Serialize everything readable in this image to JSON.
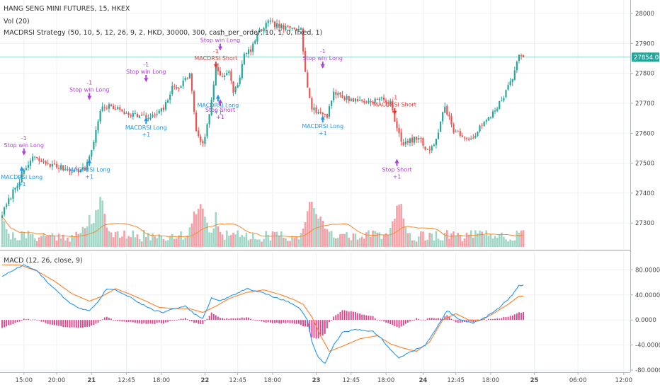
{
  "header": {
    "symbol_line": "HANG SENG MINI FUTURES, 15, HKEX",
    "volume_line": "Vol (20)",
    "strategy_line": "MACDRSI Strategy (50, 10, 5, 12, 26, 9, 2, HKD, 30000, 300, cash_per_order, 10, 1, 0, fixed, 1)"
  },
  "macd_panel": {
    "label": "MACD (12, 26, close, 9)",
    "y_ticks": [
      "80.0000",
      "40.0000",
      "0.0000",
      "-40.0000",
      "-80.0000"
    ]
  },
  "colors": {
    "up": "#26a69a",
    "down": "#ef5350",
    "vol_up": "#9fd6c6",
    "vol_down": "#f4a0a6",
    "vol_ma": "#f28b30",
    "macd_line": "#2196f3",
    "signal_line": "#ff7f27",
    "hist": "#e0408a",
    "long_signal": "#2196f3",
    "short_signal": "#e53935",
    "exit_signal": "#b03fd8",
    "last_price_bg": "#26a69a",
    "last_price_line": "#26a69a"
  },
  "chart_data": [
    {
      "type": "candlestick",
      "title": "HANG SENG MINI FUTURES, 15, HKEX",
      "y_ticks": [
        28000,
        27900,
        27800,
        27700,
        27600,
        27500,
        27400,
        27300
      ],
      "ylim": [
        27215,
        28030
      ],
      "last_price": 27854.0,
      "last_price_label": "27854.00",
      "x_ticks": [
        "15:00",
        "20:00",
        "21",
        "12:45",
        "18:00",
        "22",
        "12:45",
        "18:00",
        "23",
        "12:45",
        "18:00",
        "24",
        "12:45",
        "18:00",
        "25",
        "06:00",
        "12:00"
      ],
      "anchors": [
        [
          0,
          27330
        ],
        [
          6,
          27420
        ],
        [
          10,
          27470
        ],
        [
          14,
          27520
        ],
        [
          18,
          27505
        ],
        [
          24,
          27490
        ],
        [
          30,
          27480
        ],
        [
          34,
          27475
        ],
        [
          38,
          27480
        ],
        [
          42,
          27570
        ],
        [
          45,
          27680
        ],
        [
          50,
          27690
        ],
        [
          56,
          27670
        ],
        [
          62,
          27660
        ],
        [
          68,
          27650
        ],
        [
          74,
          27680
        ],
        [
          78,
          27750
        ],
        [
          82,
          27760
        ],
        [
          86,
          27800
        ],
        [
          89,
          27610
        ],
        [
          92,
          27560
        ],
        [
          95,
          27660
        ],
        [
          98,
          27820
        ],
        [
          101,
          27790
        ],
        [
          104,
          27800
        ],
        [
          106,
          27740
        ],
        [
          108,
          27760
        ],
        [
          111,
          27860
        ],
        [
          114,
          27880
        ],
        [
          118,
          27940
        ],
        [
          122,
          27970
        ],
        [
          126,
          27960
        ],
        [
          130,
          27950
        ],
        [
          134,
          27950
        ],
        [
          137,
          27960
        ],
        [
          139,
          27800
        ],
        [
          142,
          27680
        ],
        [
          145,
          27670
        ],
        [
          149,
          27660
        ],
        [
          152,
          27740
        ],
        [
          156,
          27720
        ],
        [
          162,
          27710
        ],
        [
          168,
          27705
        ],
        [
          174,
          27715
        ],
        [
          178,
          27700
        ],
        [
          181,
          27620
        ],
        [
          184,
          27560
        ],
        [
          187,
          27575
        ],
        [
          191,
          27585
        ],
        [
          195,
          27540
        ],
        [
          199,
          27580
        ],
        [
          203,
          27690
        ],
        [
          207,
          27610
        ],
        [
          211,
          27590
        ],
        [
          214,
          27570
        ],
        [
          218,
          27610
        ],
        [
          222,
          27640
        ],
        [
          226,
          27680
        ],
        [
          230,
          27720
        ],
        [
          234,
          27790
        ],
        [
          237,
          27854
        ]
      ],
      "signals": [
        {
          "type": "long",
          "label": "MACDRSI Long",
          "qty": "+1",
          "bar": 9,
          "price": 27480
        },
        {
          "type": "exit_long",
          "label": "Stop win Long",
          "qty": "-1",
          "bar": 10,
          "price": 27535
        },
        {
          "type": "long",
          "label": "MACDRSI Long",
          "qty": "+1",
          "bar": 40,
          "price": 27505
        },
        {
          "type": "exit_long",
          "label": "Stop win Long",
          "qty": "-1",
          "bar": 40,
          "price": 27720
        },
        {
          "type": "long",
          "label": "MACDRSI Long",
          "qty": "+1",
          "bar": 66,
          "price": 27645
        },
        {
          "type": "exit_long",
          "label": "Stop win Long",
          "qty": "-1",
          "bar": 66,
          "price": 27780
        },
        {
          "type": "short",
          "label": "MACDRSI Short",
          "qty": "-1",
          "bar": 98,
          "price": 27825
        },
        {
          "type": "long",
          "label": "MACDRSI Long",
          "qty": "+1",
          "bar": 99,
          "price": 27720
        },
        {
          "type": "exit_short",
          "label": "Stop Short",
          "qty": "+1",
          "bar": 100,
          "price": 27705
        },
        {
          "type": "exit_long",
          "label": "Stop win Long",
          "qty": "-1",
          "bar": 100,
          "price": 27885
        },
        {
          "type": "long",
          "label": "MACDRSI Long",
          "qty": "+1",
          "bar": 147,
          "price": 27650
        },
        {
          "type": "exit_long",
          "label": "Stop win Long",
          "qty": "-1",
          "bar": 147,
          "price": 27825
        },
        {
          "type": "short",
          "label": "MACDRSI Short",
          "qty": "-1",
          "bar": 180,
          "price": 27670
        },
        {
          "type": "exit_short",
          "label": "Stop Short",
          "qty": "+1",
          "bar": 181,
          "price": 27505
        }
      ]
    },
    {
      "type": "bar",
      "title": "Vol (20)",
      "volume_spikes": [
        [
          0,
          1.6
        ],
        [
          38,
          1.1
        ],
        [
          40,
          1.4
        ],
        [
          43,
          1.7
        ],
        [
          45,
          2.1
        ],
        [
          46,
          1.9
        ],
        [
          88,
          1.5
        ],
        [
          90,
          2.2
        ],
        [
          92,
          1.8
        ],
        [
          98,
          1.4
        ],
        [
          141,
          2.6
        ],
        [
          143,
          2.0
        ],
        [
          145,
          1.6
        ],
        [
          147,
          1.3
        ],
        [
          180,
          1.5
        ],
        [
          182,
          2.1
        ],
        [
          183,
          1.7
        ]
      ]
    },
    {
      "type": "line",
      "title": "MACD (12, 26, close, 9)",
      "ylim": [
        -82,
        96
      ],
      "macd_anchors": [
        [
          0,
          70
        ],
        [
          10,
          88
        ],
        [
          16,
          78
        ],
        [
          22,
          56
        ],
        [
          30,
          30
        ],
        [
          36,
          18
        ],
        [
          40,
          15
        ],
        [
          44,
          30
        ],
        [
          48,
          50
        ],
        [
          52,
          48
        ],
        [
          58,
          38
        ],
        [
          64,
          25
        ],
        [
          70,
          15
        ],
        [
          74,
          12
        ],
        [
          78,
          18
        ],
        [
          84,
          22
        ],
        [
          88,
          10
        ],
        [
          92,
          2
        ],
        [
          96,
          35
        ],
        [
          100,
          30
        ],
        [
          106,
          40
        ],
        [
          112,
          50
        ],
        [
          118,
          45
        ],
        [
          126,
          35
        ],
        [
          132,
          28
        ],
        [
          136,
          20
        ],
        [
          140,
          0
        ],
        [
          142,
          -35
        ],
        [
          145,
          -60
        ],
        [
          148,
          -70
        ],
        [
          152,
          -40
        ],
        [
          156,
          -20
        ],
        [
          162,
          -15
        ],
        [
          170,
          -18
        ],
        [
          174,
          -30
        ],
        [
          178,
          -48
        ],
        [
          182,
          -60
        ],
        [
          188,
          -50
        ],
        [
          194,
          -40
        ],
        [
          198,
          -20
        ],
        [
          204,
          15
        ],
        [
          210,
          0
        ],
        [
          216,
          -5
        ],
        [
          222,
          5
        ],
        [
          228,
          20
        ],
        [
          234,
          40
        ],
        [
          237,
          55
        ]
      ],
      "signal_anchors": [
        [
          0,
          88
        ],
        [
          8,
          88
        ],
        [
          16,
          78
        ],
        [
          24,
          62
        ],
        [
          32,
          42
        ],
        [
          40,
          30
        ],
        [
          46,
          38
        ],
        [
          52,
          50
        ],
        [
          58,
          42
        ],
        [
          66,
          30
        ],
        [
          72,
          20
        ],
        [
          80,
          18
        ],
        [
          86,
          18
        ],
        [
          92,
          12
        ],
        [
          98,
          22
        ],
        [
          104,
          34
        ],
        [
          112,
          44
        ],
        [
          120,
          48
        ],
        [
          128,
          40
        ],
        [
          134,
          32
        ],
        [
          138,
          25
        ],
        [
          142,
          5
        ],
        [
          146,
          -25
        ],
        [
          150,
          -50
        ],
        [
          156,
          -42
        ],
        [
          164,
          -30
        ],
        [
          172,
          -25
        ],
        [
          178,
          -38
        ],
        [
          184,
          -45
        ],
        [
          190,
          -50
        ],
        [
          196,
          -35
        ],
        [
          202,
          0
        ],
        [
          208,
          10
        ],
        [
          214,
          0
        ],
        [
          220,
          0
        ],
        [
          226,
          12
        ],
        [
          232,
          25
        ],
        [
          237,
          38
        ]
      ],
      "hist_scale": 0.7
    }
  ]
}
